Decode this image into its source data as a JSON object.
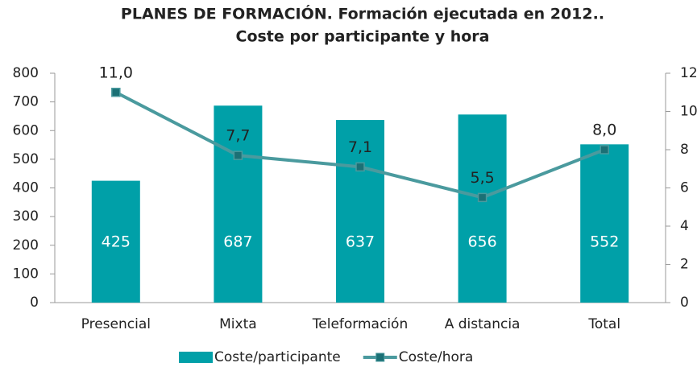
{
  "chart_data": {
    "type": "bar",
    "title": [
      "PLANES DE FORMACIÓN. Formación ejecutada en 2012..",
      "Coste por participante y hora"
    ],
    "categories": [
      "Presencial",
      "Mixta",
      "Teleformación",
      "A distancia",
      "Total"
    ],
    "series": [
      {
        "name": "Coste/participante",
        "type": "bar",
        "color": "#00a0a8",
        "axis": "y",
        "values": [
          425,
          687,
          637,
          656,
          552
        ]
      },
      {
        "name": "Coste/hora",
        "type": "line",
        "color": "#4a9a9e",
        "marker_color": "#1b7075",
        "axis": "y2",
        "values": [
          11.0,
          7.7,
          7.1,
          5.5,
          8.0
        ],
        "value_labels": [
          "11,0",
          "7,7",
          "7,1",
          "5,5",
          "8,0"
        ]
      }
    ],
    "ylim": [
      0,
      800
    ],
    "yticks": [
      0,
      100,
      200,
      300,
      400,
      500,
      600,
      700,
      800
    ],
    "y2lim": [
      0,
      12
    ],
    "y2ticks": [
      0,
      2,
      4,
      6,
      8,
      10,
      12
    ],
    "legend": "bottom"
  }
}
